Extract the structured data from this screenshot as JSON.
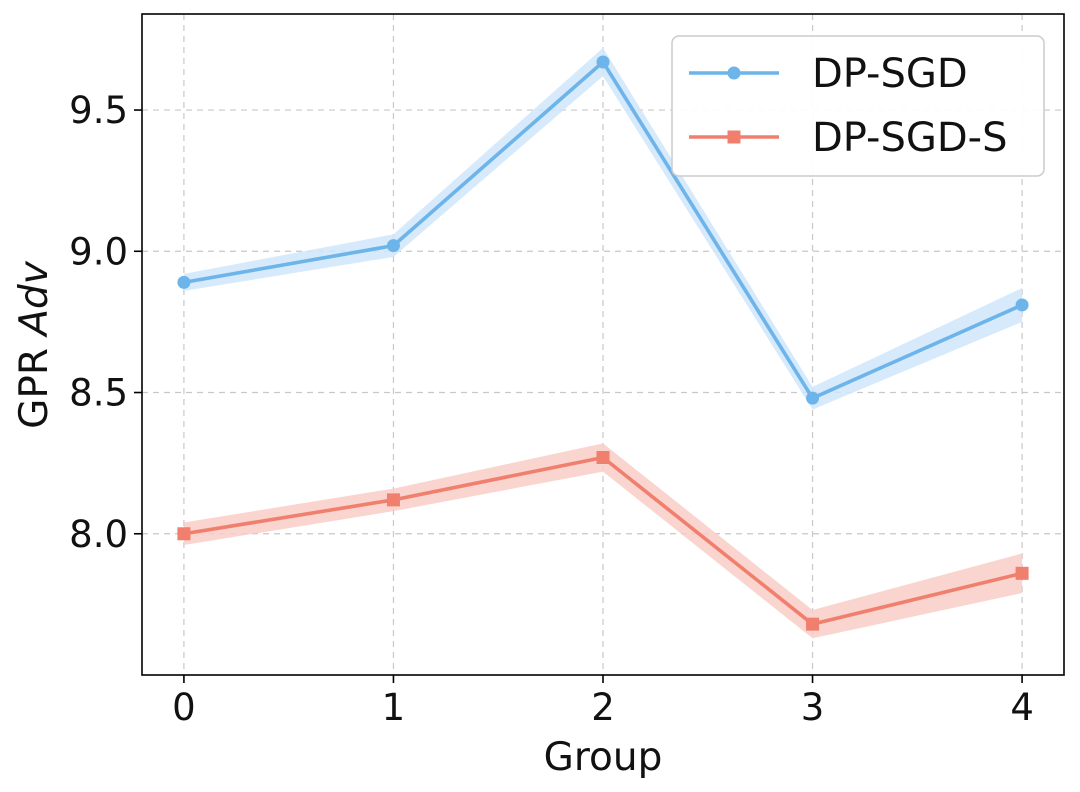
{
  "chart_data": {
    "type": "line",
    "xlabel": "Group",
    "ylabel_main": "GPR ",
    "ylabel_italic": "Adv",
    "x": [
      0,
      1,
      2,
      3,
      4
    ],
    "x_ticks": [
      "0",
      "1",
      "2",
      "3",
      "4"
    ],
    "xlim": [
      -0.2,
      4.2
    ],
    "ylim": [
      7.5,
      9.84
    ],
    "y_ticks": [
      8.0,
      8.5,
      9.0,
      9.5
    ],
    "y_tick_labels": [
      "8.0",
      "8.5",
      "9.0",
      "9.5"
    ],
    "grid": true,
    "legend_position": "upper-right",
    "series": [
      {
        "name": "DP-SGD",
        "marker": "circle",
        "color": "#6cb4ea",
        "band_color": "#cfe6fa",
        "values": [
          8.89,
          9.02,
          9.67,
          8.48,
          8.81
        ],
        "band_halfwidth": [
          0.03,
          0.04,
          0.05,
          0.04,
          0.06
        ]
      },
      {
        "name": "DP-SGD-S",
        "marker": "square",
        "color": "#f07f6e",
        "band_color": "#f9cdc6",
        "values": [
          8.0,
          8.12,
          8.27,
          7.68,
          7.86
        ],
        "band_halfwidth": [
          0.04,
          0.04,
          0.05,
          0.05,
          0.07
        ]
      }
    ]
  }
}
